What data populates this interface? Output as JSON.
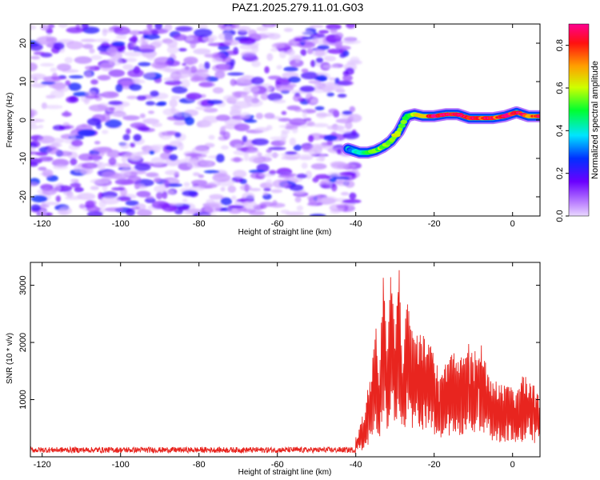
{
  "title": "PAZ1.2025.279.11.01.G03",
  "chart_data": [
    {
      "type": "heatmap",
      "name": "spectrogram",
      "xlabel": "Height of straight line (km)",
      "ylabel": "Frequency (Hz)",
      "xlim": [
        -123,
        7
      ],
      "ylim": [
        -25,
        25
      ],
      "xticks": [
        -120,
        -100,
        -80,
        -60,
        -40,
        -20,
        0
      ],
      "yticks": [
        -20,
        -10,
        0,
        10,
        20
      ],
      "noise_region_x": [
        -123,
        -40
      ],
      "noise_region_peak_amplitude": 0.25,
      "signal_track": {
        "x": [
          -42,
          -39,
          -37,
          -35,
          -33,
          -31,
          -29,
          -27,
          -25,
          -23,
          -20,
          -17,
          -14,
          -11,
          -8,
          -5,
          -2,
          1,
          4,
          7
        ],
        "freq_hz": [
          -7.5,
          -8.5,
          -8.5,
          -8,
          -7,
          -5.5,
          -3,
          1,
          1.5,
          1,
          1,
          1.5,
          1.5,
          0.5,
          0.5,
          0.5,
          1,
          2,
          1,
          1
        ],
        "amplitude": [
          0.3,
          0.45,
          0.5,
          0.55,
          0.6,
          0.6,
          0.6,
          0.55,
          0.6,
          0.7,
          0.9,
          0.85,
          0.9,
          0.8,
          0.85,
          0.8,
          0.85,
          0.9,
          0.8,
          0.75
        ]
      },
      "colorbar": {
        "label": "Normalized spectral amplitude",
        "range": [
          0.0,
          0.9
        ],
        "ticks": [
          "0.0",
          "0.2",
          "0.4",
          "0.6",
          "0.8"
        ]
      }
    },
    {
      "type": "line",
      "name": "snr",
      "xlabel": "Height of straight line (km)",
      "ylabel": "SNR (10 * v/v)",
      "xlim": [
        -123,
        7
      ],
      "ylim": [
        0,
        3400
      ],
      "xticks": [
        -120,
        -100,
        -80,
        -60,
        -40,
        -20,
        0
      ],
      "yticks": [
        1000,
        2000,
        3000
      ],
      "color": "#e8251f",
      "baseline_level": 120,
      "baseline_noise": 100,
      "x": [
        -123,
        -42,
        -40,
        -38,
        -36,
        -35,
        -34,
        -33,
        -32,
        -31,
        -30,
        -29,
        -28,
        -27,
        -25,
        -23,
        -21,
        -19,
        -17,
        -15,
        -13,
        -11,
        -9,
        -8,
        -7,
        -5,
        -3,
        -1,
        1,
        3,
        5,
        7
      ],
      "y": [
        120,
        150,
        300,
        700,
        1500,
        2400,
        1400,
        3200,
        1800,
        3300,
        2000,
        3350,
        1500,
        2800,
        2000,
        2200,
        2000,
        1500,
        1600,
        1800,
        1700,
        2000,
        1700,
        1900,
        1600,
        1300,
        1200,
        1300,
        1100,
        1400,
        1250,
        1200
      ]
    }
  ]
}
